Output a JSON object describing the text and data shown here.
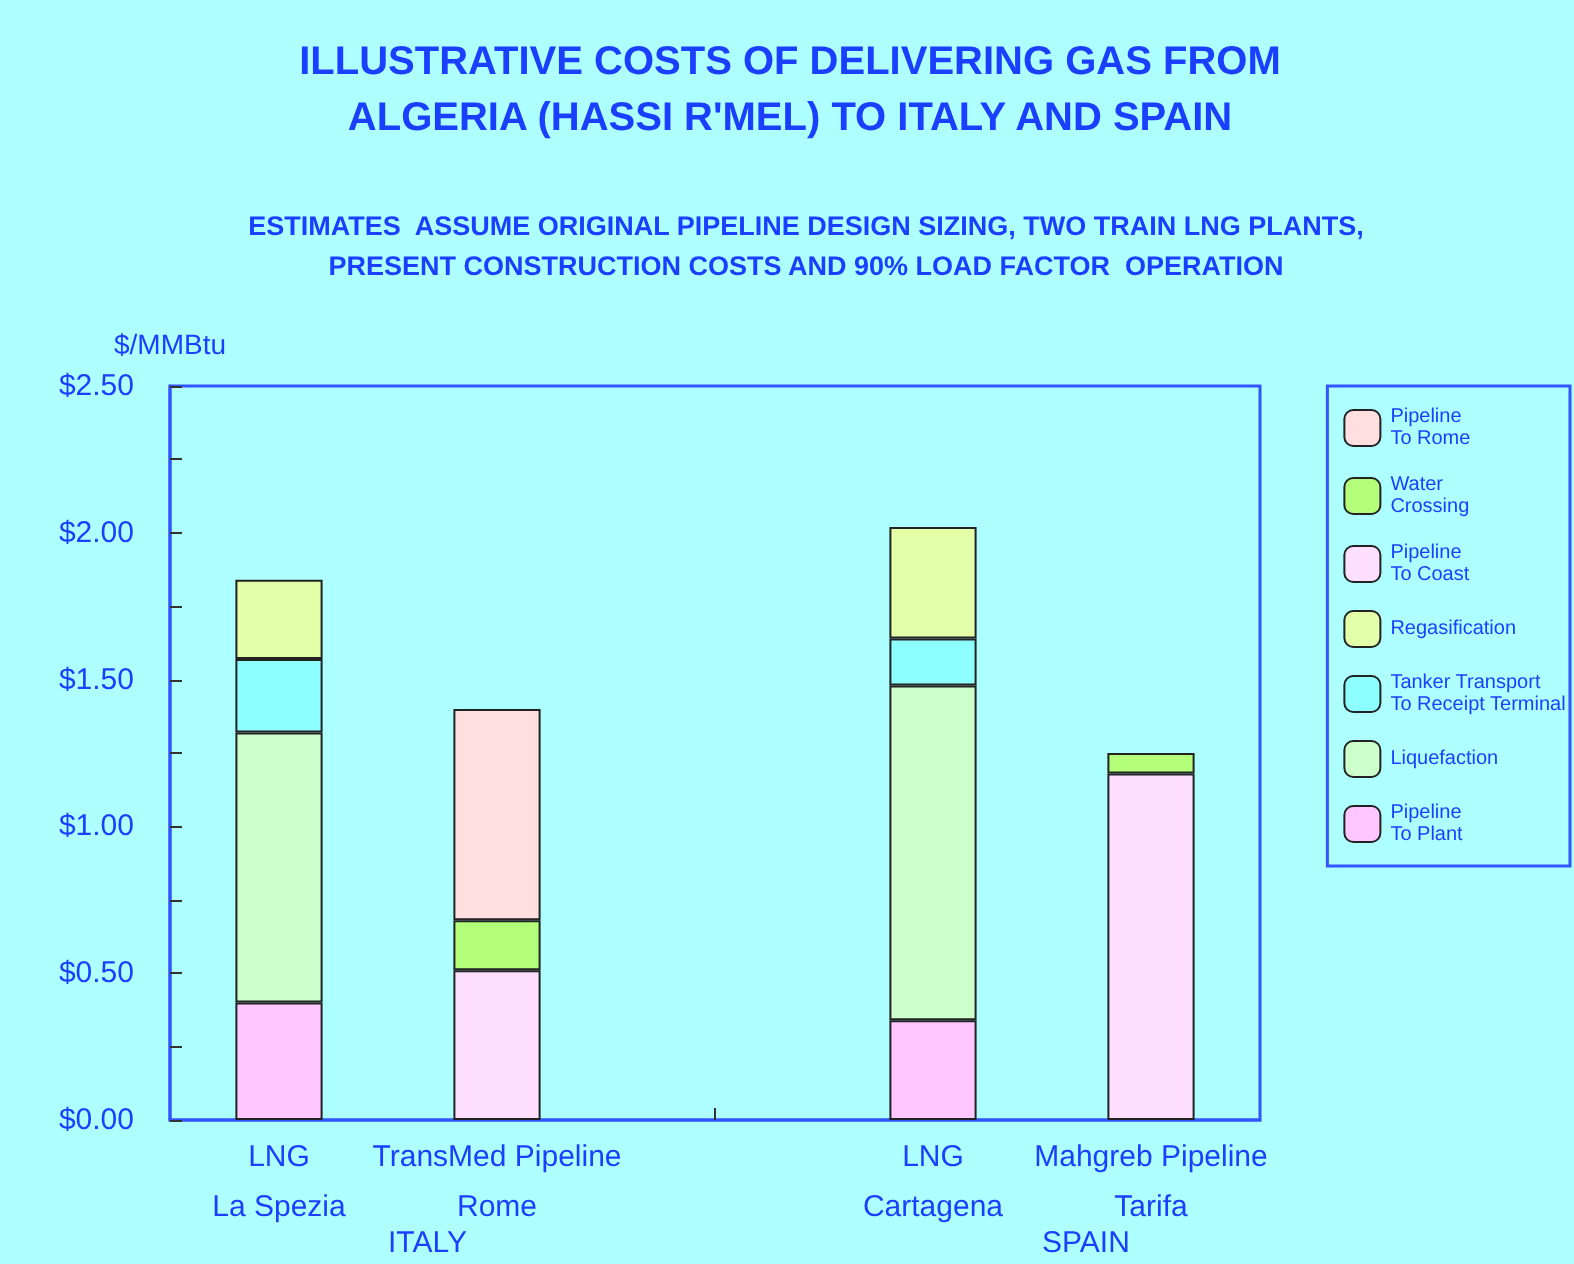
{
  "chart_data": {
    "type": "bar",
    "stacked": true,
    "title": "ILLUSTRATIVE COSTS OF DELIVERING GAS FROM\nALGERIA (HASSI R'MEL) TO ITALY AND SPAIN",
    "subtitle": "ESTIMATES  ASSUME ORIGINAL PIPELINE DESIGN SIZING, TWO TRAIN LNG PLANTS,\nPRESENT CONSTRUCTION COSTS AND 90% LOAD FACTOR  OPERATION",
    "ylabel": "$/MMBtu",
    "categories": [
      "LNG\nLa Spezia",
      "TransMed Pipeline\nRome",
      null,
      "LNG\nCartagena",
      "Mahgreb Pipeline\nTarifa"
    ],
    "series": [
      {
        "name": "Pipeline\nTo Plant",
        "color": "#ffc6ff",
        "values": [
          0.4,
          null,
          null,
          0.34,
          null
        ]
      },
      {
        "name": "Liquefaction",
        "color": "#ccffcc",
        "values": [
          0.92,
          null,
          null,
          1.14,
          null
        ]
      },
      {
        "name": "Tanker Transport\nTo Receipt Terminal",
        "color": "#8effff",
        "values": [
          0.25,
          null,
          null,
          0.16,
          null
        ]
      },
      {
        "name": "Regasification",
        "color": "#e3ffa8",
        "values": [
          0.27,
          null,
          null,
          0.38,
          null
        ]
      },
      {
        "name": "Pipeline\nTo Coast",
        "color": "#ffdfff",
        "values": [
          null,
          0.51,
          null,
          null,
          1.18
        ]
      },
      {
        "name": "Water\nCrossing",
        "color": "#b3ff7a",
        "values": [
          null,
          0.17,
          null,
          null,
          0.07
        ]
      },
      {
        "name": "Pipeline\nTo Rome",
        "color": "#ffdfdf",
        "values": [
          null,
          0.72,
          null,
          null,
          null
        ]
      }
    ],
    "ylim": [
      0,
      2.5
    ],
    "yticks": [
      {
        "value": 0,
        "label": "$0.00"
      },
      {
        "value": 0.25,
        "label": null
      },
      {
        "value": 0.5,
        "label": "$0.50"
      },
      {
        "value": 0.75,
        "label": null
      },
      {
        "value": 1,
        "label": "$1.00"
      },
      {
        "value": 1.25,
        "label": null
      },
      {
        "value": 1.5,
        "label": "$1.50"
      },
      {
        "value": 1.75,
        "label": null
      },
      {
        "value": 2,
        "label": "$2.00"
      },
      {
        "value": 2.25,
        "label": null
      },
      {
        "value": 2.5,
        "label": "$2.50"
      }
    ],
    "legend": "right",
    "grid": false,
    "annotations": [
      "ITALY",
      "SPAIN"
    ]
  }
}
